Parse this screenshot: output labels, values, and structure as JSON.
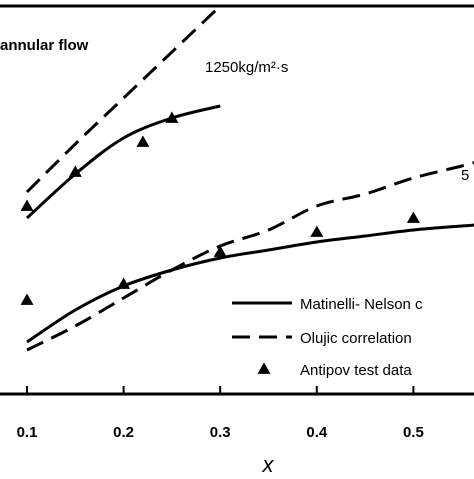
{
  "chart_data": {
    "type": "line",
    "title": "",
    "annotation_top_left": "annular flow",
    "xlabel": "x",
    "ylabel": "",
    "xlim": [
      0.05,
      0.58
    ],
    "ylim": [
      0,
      1
    ],
    "x_ticks": [
      0.1,
      0.2,
      0.3,
      0.4,
      0.5
    ],
    "x_tick_labels": [
      "0.1",
      "0.2",
      "0.3",
      "0.4",
      "0.5"
    ],
    "legend": {
      "position": "bottom-right",
      "entries": [
        {
          "label": "Matinelli- Nelson c",
          "style": "solid"
        },
        {
          "label": "Olujic correlation",
          "style": "dashed"
        },
        {
          "label": "Antipov test data",
          "style": "triangle"
        }
      ]
    },
    "group_labels": [
      {
        "text": "1250kg/m²·s",
        "x": 0.34,
        "y": 0.805
      },
      {
        "text": "5",
        "x": 0.57,
        "y": 0.535
      }
    ],
    "series": [
      {
        "group": "1250kg/m²·s",
        "style": "solid",
        "x": [
          0.1,
          0.15,
          0.2,
          0.25,
          0.3
        ],
        "y": [
          0.44,
          0.55,
          0.64,
          0.69,
          0.72
        ]
      },
      {
        "group": "1250kg/m²·s",
        "style": "dashed",
        "x": [
          0.1,
          0.15,
          0.2,
          0.25,
          0.3
        ],
        "y": [
          0.505,
          0.625,
          0.74,
          0.855,
          0.97
        ]
      },
      {
        "group": "1250kg/m²·s",
        "style": "triangle",
        "x": [
          0.1,
          0.15,
          0.22,
          0.25
        ],
        "y": [
          0.47,
          0.555,
          0.63,
          0.69
        ]
      },
      {
        "group": "5",
        "style": "solid",
        "x": [
          0.1,
          0.15,
          0.2,
          0.25,
          0.3,
          0.35,
          0.4,
          0.45,
          0.5,
          0.55,
          0.58
        ],
        "y": [
          0.13,
          0.21,
          0.27,
          0.31,
          0.34,
          0.36,
          0.38,
          0.395,
          0.41,
          0.42,
          0.425
        ]
      },
      {
        "group": "5",
        "style": "dashed",
        "x": [
          0.1,
          0.15,
          0.2,
          0.25,
          0.3,
          0.35,
          0.4,
          0.45,
          0.5,
          0.55,
          0.58
        ],
        "y": [
          0.11,
          0.17,
          0.24,
          0.31,
          0.37,
          0.41,
          0.47,
          0.5,
          0.54,
          0.57,
          0.59
        ]
      },
      {
        "group": "5",
        "style": "triangle",
        "x": [
          0.1,
          0.2,
          0.3,
          0.4,
          0.5
        ],
        "y": [
          0.235,
          0.275,
          0.355,
          0.405,
          0.44
        ]
      }
    ]
  }
}
